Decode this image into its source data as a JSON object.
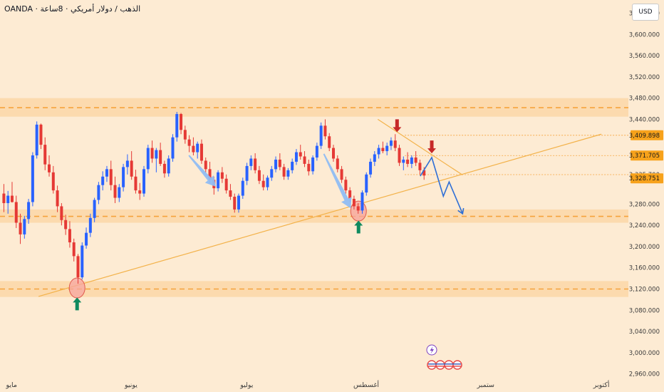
{
  "header": {
    "title": "OANDA · الذهب / دولار أمريكي · 8ساعة",
    "currency": "USD"
  },
  "colors": {
    "background": "#fdebd3",
    "zone": "#fbd7a7",
    "level_line": "#f6a33c",
    "trendline": "#f3b24a",
    "up_candle": "#2962ff",
    "down_candle": "#e53935",
    "price_label_bg": "#f7a21b",
    "green_arrow": "#0f8a5f",
    "red_arrow": "#c62828",
    "projection": "#2f6fd6",
    "circle_fill": "#f7a6a0",
    "circle_stroke": "#e05a4e",
    "blue_arrow": "#90bdf3"
  },
  "chart_data": {
    "type": "candlestick",
    "symbol": "OANDA · الذهب / دولار أمريكي · 8ساعة",
    "y_axis": {
      "position": "right",
      "ylim": [
        2950,
        3665
      ],
      "ticks": [
        "2,960.000",
        "3,000.000",
        "3,040.000",
        "3,080.000",
        "3,120.000",
        "3,160.000",
        "3,200.000",
        "3,240.000",
        "3,280.000",
        "3,320.000",
        "3,360.000",
        "3,400.000",
        "3,440.000",
        "3,480.000",
        "3,520.000",
        "3,560.000",
        "3,600.000",
        "3,640.000"
      ],
      "hidden_ticks": [
        "3,320.000",
        "3,360.000",
        "3,400.000"
      ]
    },
    "x_axis": {
      "labels": [
        {
          "text": "مايو",
          "x": 0
        },
        {
          "text": "يونيو",
          "x": 31
        },
        {
          "text": "يوليو",
          "x": 61
        },
        {
          "text": "أغسطس",
          "x": 92
        },
        {
          "text": "ستمبر",
          "x": 123
        },
        {
          "text": "أكتوبر",
          "x": 153
        }
      ],
      "xlim": [
        -3,
        160
      ]
    },
    "price_labels": [
      {
        "text": "3,409.898",
        "value": 3409.898,
        "style": "filled"
      },
      {
        "text": "3,371.705",
        "value": 3371.705,
        "style": "filled"
      },
      {
        "text": "3,335.700",
        "value": 3335.7,
        "style": "plain"
      },
      {
        "text": "3,328.751",
        "value": 3328.751,
        "style": "filled"
      }
    ],
    "zones": [
      {
        "from": 3445,
        "to": 3480,
        "line": 3462
      },
      {
        "from": 3245,
        "to": 3270,
        "line": 3257
      },
      {
        "from": 3105,
        "to": 3135,
        "line": 3120
      }
    ],
    "dotted_levels": [
      3409.898,
      3371.705,
      3335.7
    ],
    "trendlines": [
      {
        "from": [
          7,
          3106
        ],
        "to": [
          153,
          3412
        ]
      },
      {
        "from": [
          95,
          3440
        ],
        "to": [
          117,
          3335
        ]
      }
    ],
    "projection_path": [
      [
        106,
        3333
      ],
      [
        109,
        3368
      ],
      [
        112,
        3295
      ],
      [
        113.5,
        3322
      ],
      [
        117,
        3262
      ]
    ],
    "blue_arrows": [
      {
        "from": [
          46,
          3372
        ],
        "to": [
          53,
          3313
        ]
      },
      {
        "from": [
          81,
          3375
        ],
        "to": [
          88,
          3272
        ]
      }
    ],
    "circles": [
      {
        "x": 17,
        "y": 3122
      },
      {
        "x": 90,
        "y": 3267
      }
    ],
    "green_up_arrows": [
      {
        "x": 17,
        "y": 3092
      },
      {
        "x": 90,
        "y": 3237
      }
    ],
    "red_down_arrows": [
      {
        "x": 100,
        "y": 3428
      },
      {
        "x": 109,
        "y": 3388
      }
    ],
    "ohlc": [
      [
        3300,
        3318,
        3265,
        3282
      ],
      [
        3282,
        3305,
        3262,
        3296
      ],
      [
        3296,
        3322,
        3283,
        3284
      ],
      [
        3284,
        3296,
        3235,
        3245
      ],
      [
        3245,
        3262,
        3205,
        3223
      ],
      [
        3223,
        3258,
        3215,
        3252
      ],
      [
        3252,
        3290,
        3243,
        3284
      ],
      [
        3284,
        3378,
        3276,
        3372
      ],
      [
        3372,
        3436,
        3366,
        3430
      ],
      [
        3430,
        3432,
        3384,
        3392
      ],
      [
        3392,
        3406,
        3344,
        3355
      ],
      [
        3355,
        3372,
        3332,
        3340
      ],
      [
        3340,
        3352,
        3300,
        3306
      ],
      [
        3306,
        3315,
        3265,
        3276
      ],
      [
        3276,
        3282,
        3240,
        3250
      ],
      [
        3250,
        3260,
        3222,
        3233
      ],
      [
        3233,
        3248,
        3198,
        3208
      ],
      [
        3208,
        3215,
        3172,
        3182
      ],
      [
        3182,
        3186,
        3130,
        3142
      ],
      [
        3142,
        3208,
        3138,
        3202
      ],
      [
        3202,
        3236,
        3196,
        3226
      ],
      [
        3226,
        3262,
        3218,
        3254
      ],
      [
        3254,
        3292,
        3246,
        3288
      ],
      [
        3288,
        3322,
        3280,
        3316
      ],
      [
        3316,
        3342,
        3306,
        3332
      ],
      [
        3332,
        3352,
        3322,
        3346
      ],
      [
        3346,
        3362,
        3306,
        3316
      ],
      [
        3316,
        3332,
        3282,
        3292
      ],
      [
        3292,
        3318,
        3284,
        3312
      ],
      [
        3312,
        3356,
        3304,
        3350
      ],
      [
        3350,
        3374,
        3336,
        3362
      ],
      [
        3362,
        3380,
        3326,
        3332
      ],
      [
        3332,
        3345,
        3300,
        3306
      ],
      [
        3306,
        3320,
        3288,
        3300
      ],
      [
        3300,
        3352,
        3294,
        3346
      ],
      [
        3346,
        3392,
        3338,
        3386
      ],
      [
        3386,
        3400,
        3358,
        3366
      ],
      [
        3366,
        3386,
        3340,
        3382
      ],
      [
        3382,
        3396,
        3352,
        3356
      ],
      [
        3356,
        3362,
        3330,
        3338
      ],
      [
        3338,
        3372,
        3332,
        3366
      ],
      [
        3366,
        3412,
        3360,
        3406
      ],
      [
        3406,
        3454,
        3398,
        3450
      ],
      [
        3450,
        3452,
        3412,
        3420
      ],
      [
        3420,
        3428,
        3394,
        3402
      ],
      [
        3402,
        3410,
        3378,
        3390
      ],
      [
        3390,
        3406,
        3372,
        3378
      ],
      [
        3378,
        3398,
        3366,
        3394
      ],
      [
        3394,
        3402,
        3356,
        3362
      ],
      [
        3362,
        3368,
        3340,
        3346
      ],
      [
        3346,
        3360,
        3320,
        3326
      ],
      [
        3326,
        3332,
        3298,
        3310
      ],
      [
        3310,
        3344,
        3304,
        3340
      ],
      [
        3340,
        3350,
        3320,
        3328
      ],
      [
        3328,
        3336,
        3300,
        3306
      ],
      [
        3306,
        3318,
        3288,
        3294
      ],
      [
        3294,
        3300,
        3264,
        3270
      ],
      [
        3270,
        3300,
        3264,
        3296
      ],
      [
        3296,
        3330,
        3290,
        3324
      ],
      [
        3324,
        3358,
        3316,
        3352
      ],
      [
        3352,
        3372,
        3344,
        3366
      ],
      [
        3366,
        3376,
        3338,
        3344
      ],
      [
        3344,
        3352,
        3318,
        3324
      ],
      [
        3324,
        3336,
        3306,
        3312
      ],
      [
        3312,
        3334,
        3306,
        3330
      ],
      [
        3330,
        3352,
        3324,
        3346
      ],
      [
        3346,
        3370,
        3340,
        3364
      ],
      [
        3364,
        3376,
        3344,
        3350
      ],
      [
        3350,
        3356,
        3326,
        3332
      ],
      [
        3332,
        3348,
        3326,
        3344
      ],
      [
        3344,
        3366,
        3338,
        3360
      ],
      [
        3360,
        3384,
        3354,
        3378
      ],
      [
        3378,
        3392,
        3364,
        3370
      ],
      [
        3370,
        3380,
        3350,
        3356
      ],
      [
        3356,
        3364,
        3334,
        3342
      ],
      [
        3342,
        3372,
        3336,
        3368
      ],
      [
        3368,
        3396,
        3362,
        3390
      ],
      [
        3390,
        3434,
        3384,
        3428
      ],
      [
        3428,
        3440,
        3402,
        3408
      ],
      [
        3408,
        3414,
        3380,
        3386
      ],
      [
        3386,
        3392,
        3360,
        3366
      ],
      [
        3366,
        3372,
        3340,
        3346
      ],
      [
        3346,
        3352,
        3320,
        3326
      ],
      [
        3326,
        3332,
        3300,
        3306
      ],
      [
        3306,
        3312,
        3284,
        3290
      ],
      [
        3290,
        3296,
        3270,
        3276
      ],
      [
        3276,
        3282,
        3262,
        3268
      ],
      [
        3268,
        3306,
        3262,
        3302
      ],
      [
        3302,
        3340,
        3296,
        3336
      ],
      [
        3336,
        3366,
        3330,
        3360
      ],
      [
        3360,
        3380,
        3352,
        3374
      ],
      [
        3374,
        3392,
        3366,
        3386
      ],
      [
        3386,
        3398,
        3376,
        3380
      ],
      [
        3380,
        3396,
        3372,
        3390
      ],
      [
        3390,
        3406,
        3382,
        3400
      ],
      [
        3400,
        3412,
        3380,
        3386
      ],
      [
        3386,
        3392,
        3352,
        3358
      ],
      [
        3358,
        3370,
        3344,
        3364
      ],
      [
        3364,
        3378,
        3350,
        3356
      ],
      [
        3356,
        3372,
        3348,
        3368
      ],
      [
        3368,
        3380,
        3352,
        3358
      ],
      [
        3358,
        3364,
        3336,
        3344
      ],
      [
        3344,
        3350,
        3326,
        3334
      ]
    ]
  }
}
